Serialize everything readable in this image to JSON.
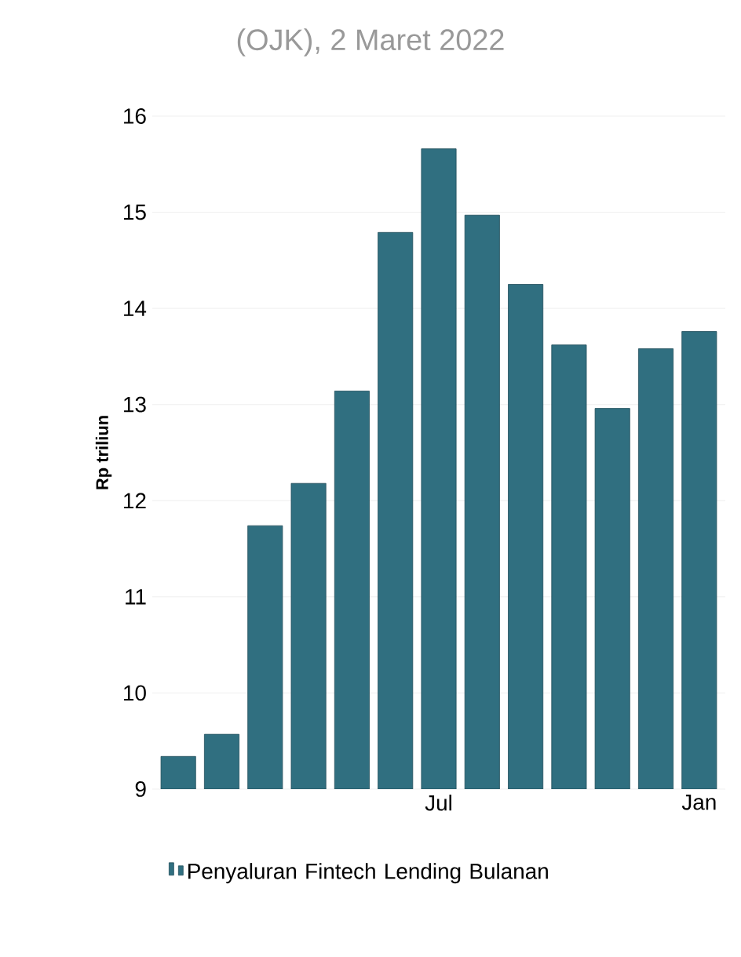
{
  "chart_data": {
    "type": "bar",
    "title": "(OJK), 2 Maret 2022",
    "ylabel": "Rp triliun",
    "categories": [
      null,
      null,
      null,
      null,
      null,
      null,
      "Jul",
      null,
      null,
      null,
      null,
      null,
      "Jan"
    ],
    "series": [
      {
        "name": "Penyaluran Fintech Lending Bulanan",
        "color": "#306f80",
        "values": [
          9.34,
          9.57,
          11.74,
          12.18,
          13.14,
          14.79,
          15.66,
          14.97,
          14.25,
          13.62,
          12.96,
          13.58,
          13.76
        ]
      }
    ],
    "ylim": [
      9,
      16
    ],
    "yticks": [
      9,
      10,
      11,
      12,
      13,
      14,
      15,
      16
    ],
    "grid": "y",
    "legend": "bottom left"
  }
}
